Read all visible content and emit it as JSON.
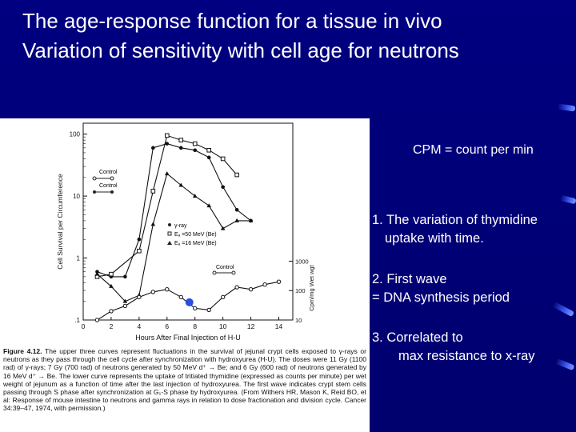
{
  "title": {
    "line1": "The age-response function for a tissue in vivo",
    "line2": "Variation of sensitivity with cell age for neutrons"
  },
  "notes": {
    "cpm": "CPM = count per min",
    "n1_line1": "1. The variation of thymidine",
    "n1_line2": "uptake with time.",
    "n2_line1": "2. First wave",
    "n2_line2": "= DNA synthesis period",
    "n3_line1": "3. Correlated to",
    "n3_line2": "max resistance to x-ray"
  },
  "figure_caption": {
    "label": "Figure 4.12.",
    "text": "The upper three curves represent fluctuations in the survival of jejunal crypt cells exposed to γ-rays or neutrons as they pass through the cell cycle after synchronization with hydroxyurea (H-U). The doses were 11 Gy (1100 rad) of γ-rays; 7 Gy (700 rad) of neutrons generated by 50 MeV d⁺ → Be; and 6 Gy (600 rad) of neutrons generated by 16 MeV d⁺ → Be. The lower curve represents the uptake of tritiated thymidine (expressed as counts per minute) per wet weight of jejunum as a function of time after the last injection of hydroxyurea. The first wave indicates crypt stem cells passing through S phase after synchronization at G₁-S phase by hydroxyurea. (From Withers HR, Mason K, Reid BO, et al: Response of mouse intestine to neutrons and gamma rays in relation to dose fractionation and division cycle. Cancer 34:39–47, 1974, with permission.)"
  },
  "colors": {
    "background": "#00007a",
    "streak": "#3d5cf0",
    "marker": "#2a4fe0",
    "ink": "#111111"
  },
  "chart_data": {
    "type": "line",
    "xlabel": "Hours After Final Injection of H-U",
    "ylabel": "Cell Survival per Circumference",
    "y2label": "Cpm/mg Wet wgt",
    "x_ticks": [
      "0",
      "2",
      "4",
      "6",
      "8",
      "10",
      "12",
      "14"
    ],
    "y_ticks": [
      ".1",
      "1",
      "10",
      "100"
    ],
    "y2_ticks": [
      "10",
      "100",
      "1000"
    ],
    "xlim": [
      0,
      15
    ],
    "ylim": [
      0.1,
      150
    ],
    "y_scale": "log",
    "y2lim": [
      10,
      1500
    ],
    "legend_left": [
      "Control",
      "Control"
    ],
    "legend_right": [
      "γ-ray",
      "Eₐ =50 MeV (Be)",
      "Eₐ =16 MeV (Be)"
    ],
    "control_label": "Control",
    "series": [
      {
        "name": "γ-ray",
        "marker": "circle-filled",
        "x": [
          1,
          2,
          3,
          4,
          5,
          6,
          7,
          8,
          9,
          10,
          11,
          12
        ],
        "y": [
          0.6,
          0.5,
          0.5,
          2.0,
          60,
          70,
          60,
          55,
          42,
          14,
          6,
          4
        ]
      },
      {
        "name": "Eₐ =50 MeV (Be)",
        "marker": "square-open",
        "x": [
          1,
          2,
          4,
          5,
          6,
          7,
          8,
          9,
          10,
          11
        ],
        "y": [
          0.5,
          0.55,
          1.3,
          12,
          95,
          80,
          70,
          55,
          40,
          22
        ]
      },
      {
        "name": "Eₐ =16 MeV (Be)",
        "marker": "triangle-filled",
        "x": [
          1,
          2,
          3,
          4,
          5,
          6,
          7,
          8,
          9,
          10,
          11,
          12
        ],
        "y": [
          0.55,
          0.35,
          0.2,
          0.25,
          3.5,
          23,
          15,
          10,
          7,
          3,
          4,
          4
        ]
      },
      {
        "name": "Control",
        "marker": "circle-open",
        "axis": "y2",
        "x": [
          1,
          2,
          3,
          4,
          5,
          6,
          7,
          8,
          9,
          10,
          11,
          12,
          13,
          14
        ],
        "y2": [
          10,
          20,
          30,
          60,
          90,
          110,
          60,
          25,
          22,
          60,
          130,
          110,
          160,
          200
        ]
      }
    ],
    "highlight_marker": {
      "x": 7.6,
      "y2": 40
    }
  }
}
